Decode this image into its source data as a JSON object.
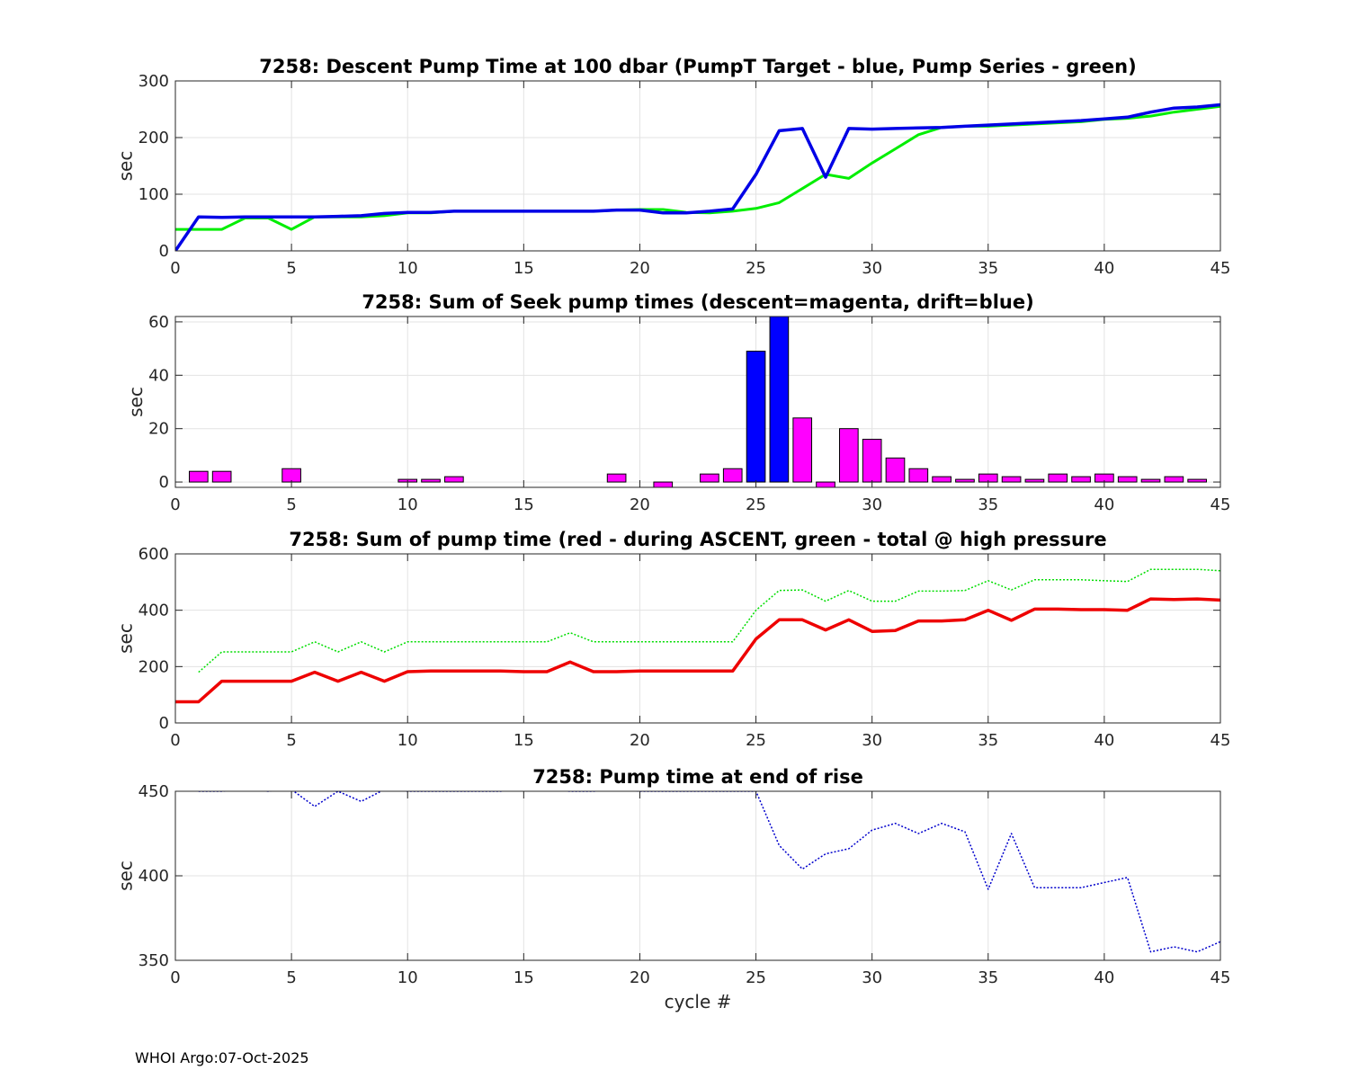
{
  "footer": "WHOI Argo:07-Oct-2025",
  "chart_data": [
    {
      "type": "line",
      "title": "7258: Descent Pump Time at 100 dbar (PumpT Target - blue, Pump Series - green)",
      "xlabel": "",
      "ylabel": "sec",
      "xlim": [
        0,
        45
      ],
      "ylim": [
        0,
        300
      ],
      "xticks": [
        0,
        5,
        10,
        15,
        20,
        25,
        30,
        35,
        40,
        45
      ],
      "yticks": [
        0,
        100,
        200,
        300
      ],
      "series": [
        {
          "name": "Pump Series",
          "color": "#00ee00",
          "width": 3,
          "dash": "",
          "x": [
            0,
            1,
            2,
            3,
            4,
            5,
            6,
            7,
            8,
            9,
            10,
            11,
            12,
            13,
            14,
            15,
            16,
            17,
            18,
            19,
            20,
            21,
            22,
            23,
            24,
            25,
            26,
            27,
            28,
            29,
            30,
            31,
            32,
            33,
            34,
            35,
            36,
            37,
            38,
            39,
            40,
            41,
            42,
            43,
            44,
            45
          ],
          "y": [
            38,
            38,
            38,
            58,
            58,
            38,
            60,
            60,
            60,
            62,
            67,
            67,
            70,
            70,
            70,
            70,
            70,
            70,
            70,
            72,
            73,
            73,
            68,
            67,
            70,
            75,
            85,
            110,
            135,
            128,
            155,
            180,
            205,
            218,
            220,
            220,
            222,
            224,
            226,
            228,
            232,
            234,
            238,
            245,
            250,
            255
          ]
        },
        {
          "name": "PumpT Target",
          "color": "#0000e6",
          "width": 3.5,
          "dash": "",
          "x": [
            0,
            1,
            2,
            3,
            4,
            5,
            6,
            7,
            8,
            9,
            10,
            11,
            12,
            13,
            14,
            15,
            16,
            17,
            18,
            19,
            20,
            21,
            22,
            23,
            24,
            25,
            26,
            27,
            28,
            29,
            30,
            31,
            32,
            33,
            34,
            35,
            36,
            37,
            38,
            39,
            40,
            41,
            42,
            43,
            44,
            45
          ],
          "y": [
            0,
            60,
            59,
            60,
            60,
            60,
            60,
            61,
            62,
            66,
            68,
            68,
            70,
            70,
            70,
            70,
            70,
            70,
            70,
            72,
            72,
            67,
            67,
            70,
            74,
            135,
            212,
            216,
            130,
            216,
            215,
            216,
            217,
            218,
            220,
            222,
            224,
            226,
            228,
            230,
            233,
            236,
            245,
            252,
            254,
            258
          ]
        }
      ]
    },
    {
      "type": "bar",
      "title": "7258: Sum of Seek pump times (descent=magenta, drift=blue)",
      "xlabel": "",
      "ylabel": "sec",
      "xlim": [
        0,
        45
      ],
      "ylim": [
        -2,
        62
      ],
      "xticks": [
        0,
        5,
        10,
        15,
        20,
        25,
        30,
        35,
        40,
        45
      ],
      "yticks": [
        0,
        20,
        40,
        60
      ],
      "series": [
        {
          "name": "descent",
          "color": "#ff00ff",
          "x": [
            1,
            2,
            5,
            10,
            11,
            12,
            19,
            21,
            23,
            24,
            27,
            28,
            29,
            30,
            31,
            32,
            33,
            34,
            35,
            36,
            37,
            38,
            39,
            40,
            41,
            42,
            43,
            44
          ],
          "values": [
            4,
            4,
            5,
            1,
            1,
            2,
            3,
            -2,
            3,
            5,
            24,
            -2,
            20,
            16,
            9,
            5,
            2,
            1,
            3,
            2,
            1,
            3,
            2,
            3,
            2,
            1,
            2,
            1
          ]
        },
        {
          "name": "drift",
          "color": "#0000ff",
          "x": [
            25,
            26
          ],
          "values": [
            49,
            62
          ]
        }
      ]
    },
    {
      "type": "line",
      "title": "7258: Sum of pump time (red - during ASCENT, green - total @ high pressure",
      "xlabel": "",
      "ylabel": "sec",
      "xlim": [
        0,
        45
      ],
      "ylim": [
        0,
        600
      ],
      "xticks": [
        0,
        5,
        10,
        15,
        20,
        25,
        30,
        35,
        40,
        45
      ],
      "yticks": [
        0,
        200,
        400,
        600
      ],
      "series": [
        {
          "name": "total @ high pressure",
          "color": "#00dd00",
          "width": 1.5,
          "dash": "2 2",
          "x": [
            1,
            2,
            3,
            4,
            5,
            6,
            7,
            8,
            9,
            10,
            11,
            12,
            13,
            14,
            15,
            16,
            17,
            18,
            19,
            20,
            21,
            22,
            23,
            24,
            25,
            26,
            27,
            28,
            29,
            30,
            31,
            32,
            33,
            34,
            35,
            36,
            37,
            38,
            39,
            40,
            41,
            42,
            43,
            44,
            45
          ],
          "y": [
            180,
            252,
            252,
            252,
            252,
            288,
            252,
            288,
            252,
            288,
            288,
            288,
            288,
            288,
            288,
            288,
            320,
            288,
            288,
            288,
            288,
            288,
            288,
            288,
            400,
            470,
            472,
            432,
            470,
            432,
            432,
            468,
            468,
            470,
            505,
            472,
            508,
            508,
            508,
            505,
            502,
            545,
            545,
            545,
            540
          ]
        },
        {
          "name": "during ASCENT",
          "color": "#ee0000",
          "width": 3.5,
          "dash": "",
          "x": [
            0,
            1,
            2,
            3,
            4,
            5,
            6,
            7,
            8,
            9,
            10,
            11,
            12,
            13,
            14,
            15,
            16,
            17,
            18,
            19,
            20,
            21,
            22,
            23,
            24,
            25,
            26,
            27,
            28,
            29,
            30,
            31,
            32,
            33,
            34,
            35,
            36,
            37,
            38,
            39,
            40,
            41,
            42,
            43,
            44,
            45
          ],
          "y": [
            75,
            75,
            148,
            148,
            148,
            148,
            180,
            148,
            180,
            148,
            182,
            184,
            184,
            184,
            184,
            182,
            182,
            216,
            182,
            182,
            184,
            184,
            184,
            184,
            184,
            298,
            366,
            366,
            330,
            366,
            325,
            328,
            362,
            362,
            366,
            400,
            364,
            404,
            404,
            402,
            402,
            400,
            440,
            438,
            440,
            436
          ]
        }
      ]
    },
    {
      "type": "line",
      "title": "7258: Pump time at end of rise",
      "xlabel": "cycle #",
      "ylabel": "sec",
      "xlim": [
        0,
        45
      ],
      "ylim": [
        350,
        450
      ],
      "xticks": [
        0,
        5,
        10,
        15,
        20,
        25,
        30,
        35,
        40,
        45
      ],
      "yticks": [
        350,
        400,
        450
      ],
      "series": [
        {
          "name": "end of rise",
          "color": "#0000cc",
          "width": 1.5,
          "dash": "2 2",
          "x": [
            1,
            2,
            3,
            4,
            5,
            6,
            7,
            8,
            9,
            10,
            11,
            12,
            13,
            14,
            15,
            16,
            17,
            18,
            19,
            20,
            21,
            22,
            23,
            24,
            25,
            26,
            27,
            28,
            29,
            30,
            31,
            32,
            33,
            34,
            35,
            36,
            37,
            38,
            39,
            40,
            41,
            42,
            43,
            44,
            45
          ],
          "y": [
            450,
            450,
            451,
            450,
            451,
            441,
            450,
            444,
            451,
            450,
            450,
            450,
            450,
            450,
            451,
            451,
            450,
            450,
            451,
            450,
            450,
            450,
            450,
            450,
            450,
            418,
            404,
            413,
            416,
            427,
            431,
            425,
            431,
            426,
            392,
            425,
            393,
            393,
            393,
            396,
            399,
            355,
            358,
            355,
            361
          ]
        }
      ]
    }
  ]
}
